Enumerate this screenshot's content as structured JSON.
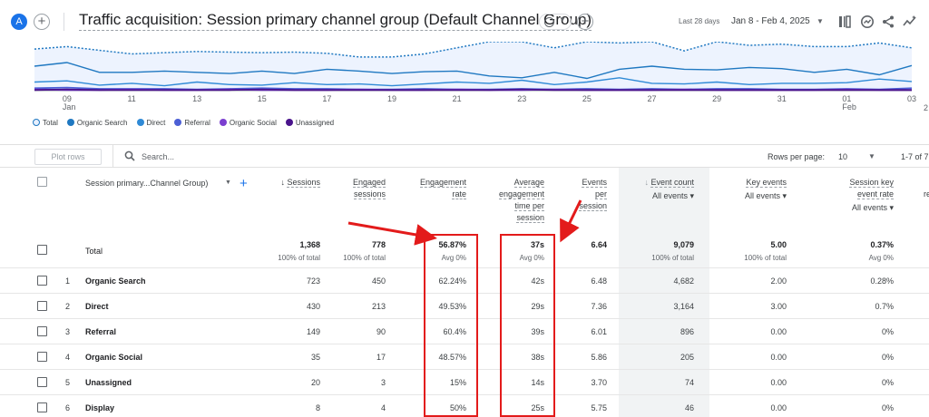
{
  "header": {
    "avatar_letter": "A",
    "title": "Traffic acquisition: Session primary channel group (Default Channel Group)",
    "date_label": "Last 28 days",
    "date_range": "Jan 8 - Feb 4, 2025"
  },
  "chart": {
    "x_axis_ticks": [
      {
        "day": "09",
        "month": "Jan"
      },
      {
        "day": "11",
        "month": ""
      },
      {
        "day": "13",
        "month": ""
      },
      {
        "day": "15",
        "month": ""
      },
      {
        "day": "17",
        "month": ""
      },
      {
        "day": "19",
        "month": ""
      },
      {
        "day": "21",
        "month": ""
      },
      {
        "day": "23",
        "month": ""
      },
      {
        "day": "25",
        "month": ""
      },
      {
        "day": "27",
        "month": ""
      },
      {
        "day": "29",
        "month": ""
      },
      {
        "day": "31",
        "month": ""
      },
      {
        "day": "01",
        "month": "Feb"
      },
      {
        "day": "03",
        "month": ""
      }
    ],
    "right_tick": "2",
    "legend": [
      {
        "name": "Total",
        "color": "#a8c7fa"
      },
      {
        "name": "Organic Search",
        "color": "#1f78c1"
      },
      {
        "name": "Direct",
        "color": "#2f8ad6"
      },
      {
        "name": "Referral",
        "color": "#4c5fd5"
      },
      {
        "name": "Organic Social",
        "color": "#7b3fd0"
      },
      {
        "name": "Unassigned",
        "color": "#4a148c"
      }
    ]
  },
  "chart_data": {
    "type": "line",
    "x": [
      "Jan 8",
      "Jan 9",
      "Jan 10",
      "Jan 11",
      "Jan 12",
      "Jan 13",
      "Jan 14",
      "Jan 15",
      "Jan 16",
      "Jan 17",
      "Jan 18",
      "Jan 19",
      "Jan 20",
      "Jan 21",
      "Jan 22",
      "Jan 23",
      "Jan 24",
      "Jan 25",
      "Jan 26",
      "Jan 27",
      "Jan 28",
      "Jan 29",
      "Jan 30",
      "Jan 31",
      "Feb 1",
      "Feb 2",
      "Feb 3",
      "Feb 4"
    ],
    "series": [
      {
        "name": "Total",
        "values": [
          68,
          72,
          66,
          60,
          62,
          64,
          63,
          62,
          63,
          61,
          55,
          55,
          60,
          70,
          80,
          82,
          70,
          80,
          78,
          82,
          65,
          80,
          74,
          76,
          72,
          72,
          78,
          70
        ]
      },
      {
        "name": "Organic Search",
        "values": [
          40,
          46,
          30,
          30,
          32,
          30,
          28,
          32,
          28,
          35,
          32,
          28,
          31,
          32,
          24,
          21,
          30,
          20,
          35,
          40,
          35,
          34,
          38,
          36,
          30,
          35,
          26,
          41
        ]
      },
      {
        "name": "Direct",
        "values": [
          14,
          16,
          9,
          12,
          8,
          14,
          10,
          9,
          13,
          10,
          11,
          8,
          11,
          14,
          12,
          17,
          10,
          14,
          21,
          12,
          11,
          14,
          10,
          12,
          12,
          13,
          19,
          15
        ]
      },
      {
        "name": "Referral",
        "values": [
          4,
          5,
          3,
          3,
          3,
          2,
          3,
          4,
          3,
          3,
          2,
          2,
          3,
          2,
          2,
          3,
          2,
          3,
          2,
          3,
          2,
          3,
          3,
          2,
          2,
          3,
          2,
          4
        ]
      },
      {
        "name": "Organic Social",
        "values": [
          2,
          1,
          1,
          2,
          1,
          1,
          2,
          1,
          1,
          1,
          2,
          1,
          1,
          2,
          1,
          1,
          2,
          1,
          1,
          1,
          2,
          1,
          1,
          1,
          1,
          2,
          1,
          1
        ]
      },
      {
        "name": "Unassigned",
        "values": [
          1,
          2,
          1,
          1,
          1,
          1,
          1,
          2,
          1,
          1,
          1,
          1,
          1,
          1,
          1,
          2,
          1,
          1,
          1,
          1,
          1,
          1,
          1,
          1,
          1,
          1,
          1,
          1
        ]
      }
    ]
  },
  "toolbar": {
    "plot_rows": "Plot rows",
    "search_placeholder": "Search...",
    "rows_per_page_label": "Rows per page:",
    "rows_per_page_value": "10",
    "pager_text": "1-7 of 7"
  },
  "table": {
    "dimension_header": "Session primary...Channel Group)",
    "columns": [
      {
        "key": "sessions",
        "lines": [
          "Sessions"
        ],
        "sort": true
      },
      {
        "key": "engaged",
        "lines": [
          "Engaged",
          "sessions"
        ]
      },
      {
        "key": "engrate",
        "lines": [
          "Engagement",
          "rate"
        ]
      },
      {
        "key": "avgtime",
        "lines": [
          "Average",
          "engagement",
          "time per",
          "session"
        ]
      },
      {
        "key": "eps",
        "lines": [
          "Events",
          "per",
          "session"
        ]
      },
      {
        "key": "eventcount",
        "lines": [
          "Event count"
        ],
        "selector": "All events",
        "sort": true
      },
      {
        "key": "keyevents",
        "lines": [
          "Key events"
        ],
        "selector": "All events"
      },
      {
        "key": "skrate",
        "lines": [
          "Session key",
          "event rate"
        ],
        "selector": "All events"
      }
    ],
    "edge_header": "re",
    "total": {
      "label": "Total",
      "values": [
        "1,368",
        "778",
        "56.87%",
        "37s",
        "6.64",
        "9,079",
        "5.00",
        "0.37%"
      ],
      "subs": [
        "100% of total",
        "100% of total",
        "Avg 0%",
        "Avg 0%",
        "",
        "100% of total",
        "100% of total",
        "Avg 0%"
      ]
    },
    "rows": [
      {
        "index": "1",
        "channel": "Organic Search",
        "values": [
          "723",
          "450",
          "62.24%",
          "42s",
          "6.48",
          "4,682",
          "2.00",
          "0.28%"
        ]
      },
      {
        "index": "2",
        "channel": "Direct",
        "values": [
          "430",
          "213",
          "49.53%",
          "29s",
          "7.36",
          "3,164",
          "3.00",
          "0.7%"
        ]
      },
      {
        "index": "3",
        "channel": "Referral",
        "values": [
          "149",
          "90",
          "60.4%",
          "39s",
          "6.01",
          "896",
          "0.00",
          "0%"
        ]
      },
      {
        "index": "4",
        "channel": "Organic Social",
        "values": [
          "35",
          "17",
          "48.57%",
          "38s",
          "5.86",
          "205",
          "0.00",
          "0%"
        ]
      },
      {
        "index": "5",
        "channel": "Unassigned",
        "values": [
          "20",
          "3",
          "15%",
          "14s",
          "3.70",
          "74",
          "0.00",
          "0%"
        ]
      },
      {
        "index": "6",
        "channel": "Display",
        "values": [
          "8",
          "4",
          "50%",
          "25s",
          "5.75",
          "46",
          "0.00",
          "0%"
        ]
      }
    ]
  },
  "colors": {
    "accent": "#1a73e8",
    "annotation_red": "#e31b1b"
  }
}
